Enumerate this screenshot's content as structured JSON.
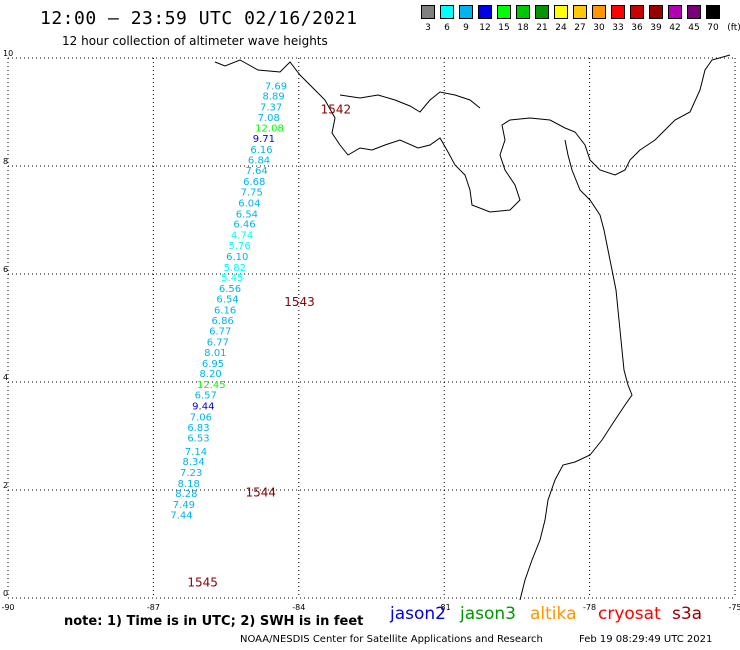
{
  "header": {
    "title": "12:00 – 23:59 UTC 02/16/2021",
    "subtitle": "12 hour collection of altimeter wave heights"
  },
  "legend": {
    "unit": "(ft)",
    "bins": [
      {
        "label": "3",
        "color": "#808080"
      },
      {
        "label": "6",
        "color": "#00ffff"
      },
      {
        "label": "9",
        "color": "#00b4f0"
      },
      {
        "label": "12",
        "color": "#0000e6"
      },
      {
        "label": "15",
        "color": "#00ff00"
      },
      {
        "label": "18",
        "color": "#00c800"
      },
      {
        "label": "21",
        "color": "#009600"
      },
      {
        "label": "24",
        "color": "#ffff00"
      },
      {
        "label": "27",
        "color": "#ffc800"
      },
      {
        "label": "30",
        "color": "#ff9600"
      },
      {
        "label": "33",
        "color": "#ff0000"
      },
      {
        "label": "36",
        "color": "#c80000"
      },
      {
        "label": "39",
        "color": "#960000"
      },
      {
        "label": "42",
        "color": "#b400b4"
      },
      {
        "label": "45",
        "color": "#780078"
      },
      {
        "label": "70",
        "color": "#000000"
      }
    ]
  },
  "map": {
    "lon_ticks": [
      "-90",
      "-87",
      "-84",
      "-81",
      "-78",
      "-75"
    ],
    "lat_ticks": [
      "0",
      "2",
      "4",
      "6",
      "8",
      "10"
    ],
    "lon_range": [
      -90,
      -75
    ],
    "lat_range": [
      0,
      10
    ],
    "grid": true
  },
  "observations": [
    {
      "lon": -84.7,
      "lat": 9.42,
      "swh": "7.69",
      "color": "#00b4f0"
    },
    {
      "lon": -84.75,
      "lat": 9.23,
      "swh": "8.89",
      "color": "#00b4f0"
    },
    {
      "lon": -84.8,
      "lat": 9.03,
      "swh": "7.37",
      "color": "#00b4f0"
    },
    {
      "lon": -84.85,
      "lat": 8.83,
      "swh": "7.08",
      "color": "#00b4f0"
    },
    {
      "lon": -84.9,
      "lat": 8.64,
      "swh": "12.08",
      "color": "#00ff00"
    },
    {
      "lon": -84.95,
      "lat": 8.44,
      "swh": "9.71",
      "color": "#0000e6"
    },
    {
      "lon": -85.0,
      "lat": 8.24,
      "swh": "6.16",
      "color": "#00b4f0"
    },
    {
      "lon": -85.05,
      "lat": 8.05,
      "swh": "6.84",
      "color": "#00b4f0"
    },
    {
      "lon": -85.1,
      "lat": 7.85,
      "swh": "7.64",
      "color": "#00b4f0"
    },
    {
      "lon": -85.15,
      "lat": 7.65,
      "swh": "6.68",
      "color": "#00b4f0"
    },
    {
      "lon": -85.2,
      "lat": 7.45,
      "swh": "7.75",
      "color": "#00b4f0"
    },
    {
      "lon": -85.25,
      "lat": 7.25,
      "swh": "6.04",
      "color": "#00b4f0"
    },
    {
      "lon": -85.3,
      "lat": 7.05,
      "swh": "6.54",
      "color": "#00b4f0"
    },
    {
      "lon": -85.35,
      "lat": 6.86,
      "swh": "6.46",
      "color": "#00b4f0"
    },
    {
      "lon": -85.4,
      "lat": 6.66,
      "swh": "4.74",
      "color": "#00ffff"
    },
    {
      "lon": -85.45,
      "lat": 6.46,
      "swh": "5.76",
      "color": "#00ffff"
    },
    {
      "lon": -85.5,
      "lat": 6.26,
      "swh": "6.10",
      "color": "#00b4f0"
    },
    {
      "lon": -85.55,
      "lat": 6.06,
      "swh": "5.82",
      "color": "#00ffff"
    },
    {
      "lon": -85.6,
      "lat": 5.87,
      "swh": "5.45",
      "color": "#00ffff"
    },
    {
      "lon": -85.65,
      "lat": 5.67,
      "swh": "6.56",
      "color": "#00b4f0"
    },
    {
      "lon": -85.7,
      "lat": 5.47,
      "swh": "6.54",
      "color": "#00b4f0"
    },
    {
      "lon": -85.75,
      "lat": 5.27,
      "swh": "6.16",
      "color": "#00b4f0"
    },
    {
      "lon": -85.8,
      "lat": 5.07,
      "swh": "6.86",
      "color": "#00b4f0"
    },
    {
      "lon": -85.85,
      "lat": 4.88,
      "swh": "6.77",
      "color": "#00b4f0"
    },
    {
      "lon": -85.9,
      "lat": 4.68,
      "swh": "6.77",
      "color": "#00b4f0"
    },
    {
      "lon": -85.95,
      "lat": 4.48,
      "swh": "8.01",
      "color": "#00b4f0"
    },
    {
      "lon": -86.0,
      "lat": 4.28,
      "swh": "6.95",
      "color": "#00b4f0"
    },
    {
      "lon": -86.05,
      "lat": 4.09,
      "swh": "8.20",
      "color": "#00b4f0"
    },
    {
      "lon": -86.1,
      "lat": 3.89,
      "swh": "12.45",
      "color": "#00ff00"
    },
    {
      "lon": -86.15,
      "lat": 3.69,
      "swh": "6.57",
      "color": "#00b4f0"
    },
    {
      "lon": -86.2,
      "lat": 3.49,
      "swh": "9.44",
      "color": "#0000e6"
    },
    {
      "lon": -86.25,
      "lat": 3.29,
      "swh": "7.06",
      "color": "#00b4f0"
    },
    {
      "lon": -86.3,
      "lat": 3.09,
      "swh": "6.83",
      "color": "#00b4f0"
    },
    {
      "lon": -86.3,
      "lat": 2.9,
      "swh": "6.53",
      "color": "#00b4f0"
    },
    {
      "lon": -86.35,
      "lat": 2.65,
      "swh": "7.14",
      "color": "#00b4f0"
    },
    {
      "lon": -86.4,
      "lat": 2.46,
      "swh": "8.34",
      "color": "#00b4f0"
    },
    {
      "lon": -86.45,
      "lat": 2.26,
      "swh": "7.23",
      "color": "#00b4f0"
    },
    {
      "lon": -86.5,
      "lat": 2.06,
      "swh": "8.18",
      "color": "#00b4f0"
    },
    {
      "lon": -86.55,
      "lat": 1.87,
      "swh": "8.28",
      "color": "#00b4f0"
    },
    {
      "lon": -86.6,
      "lat": 1.67,
      "swh": "7.49",
      "color": "#00b4f0"
    },
    {
      "lon": -86.65,
      "lat": 1.47,
      "swh": "7.44",
      "color": "#00b4f0"
    }
  ],
  "time_labels": [
    {
      "text": "1542",
      "lon": -83.55,
      "lat": 8.97
    },
    {
      "text": "1543",
      "lon": -84.3,
      "lat": 5.41
    },
    {
      "text": "1544",
      "lon": -85.1,
      "lat": 1.88
    },
    {
      "text": "1545",
      "lon": -86.3,
      "lat": 0.21
    }
  ],
  "footer": {
    "note": "note: 1) Time is in UTC; 2) SWH is in feet",
    "satellites": [
      {
        "name": "jason2",
        "color": "#0000e6"
      },
      {
        "name": "jason3",
        "color": "#009600"
      },
      {
        "name": "altika",
        "color": "#ff9600"
      },
      {
        "name": "cryosat",
        "color": "#ff0000"
      },
      {
        "name": "s3a",
        "color": "#960000"
      }
    ],
    "credit": "NOAA/NESDIS Center for Satellite Applications and Research",
    "timestamp": "Feb 19 08:29:49 UTC 2021"
  }
}
